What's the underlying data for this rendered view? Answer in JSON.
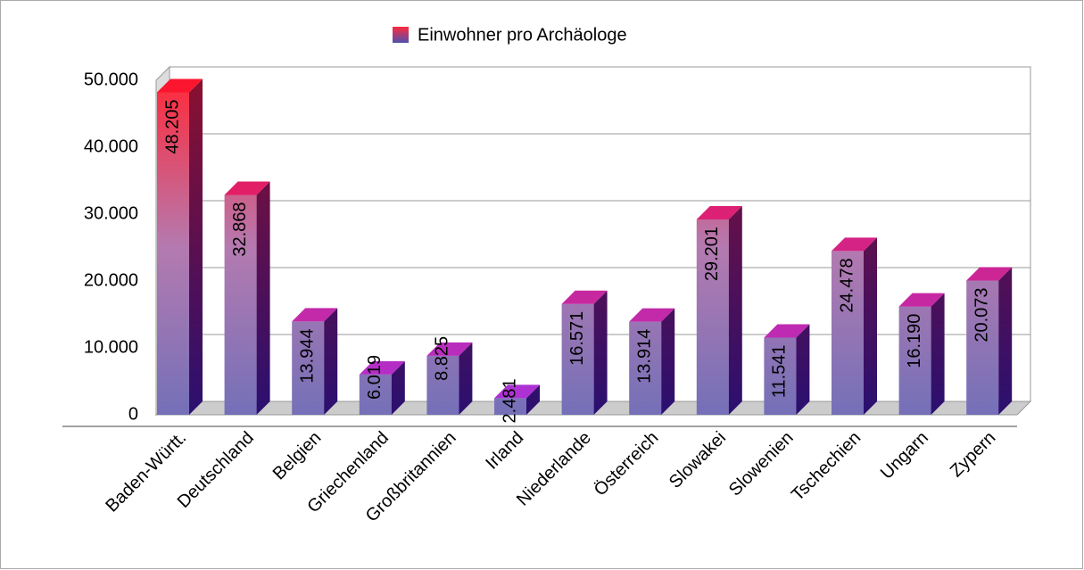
{
  "chart_data": {
    "type": "bar3d",
    "categories": [
      "Baden-Württ.",
      "Deutschland",
      "Belgien",
      "Griechenland",
      "Großbritannien",
      "Irland",
      "Niederlande",
      "Österreich",
      "Slowakei",
      "Slowenien",
      "Tschechien",
      "Ungarn",
      "Zypern"
    ],
    "series": [
      {
        "name": "Einwohner pro Archäologe",
        "values": [
          48205,
          32868,
          13944,
          6019,
          8825,
          2481,
          16571,
          13914,
          29201,
          11541,
          24478,
          16190,
          20073
        ],
        "value_labels": [
          "48.205",
          "32.868",
          "13.944",
          "6.019",
          "8.825",
          "2.481",
          "16.571",
          "13.914",
          "29.201",
          "11.541",
          "24.478",
          "16.190",
          "20.073"
        ]
      }
    ],
    "ylim": [
      0,
      50000
    ],
    "yticks": [
      0,
      {
        "value": 10000,
        "label": "10.000"
      },
      {
        "value": 20000,
        "label": "20.000"
      },
      {
        "value": 30000,
        "label": "30.000"
      },
      {
        "value": 40000,
        "label": "40.000"
      },
      {
        "value": 50000,
        "label": "50.000"
      }
    ],
    "grid": true
  }
}
